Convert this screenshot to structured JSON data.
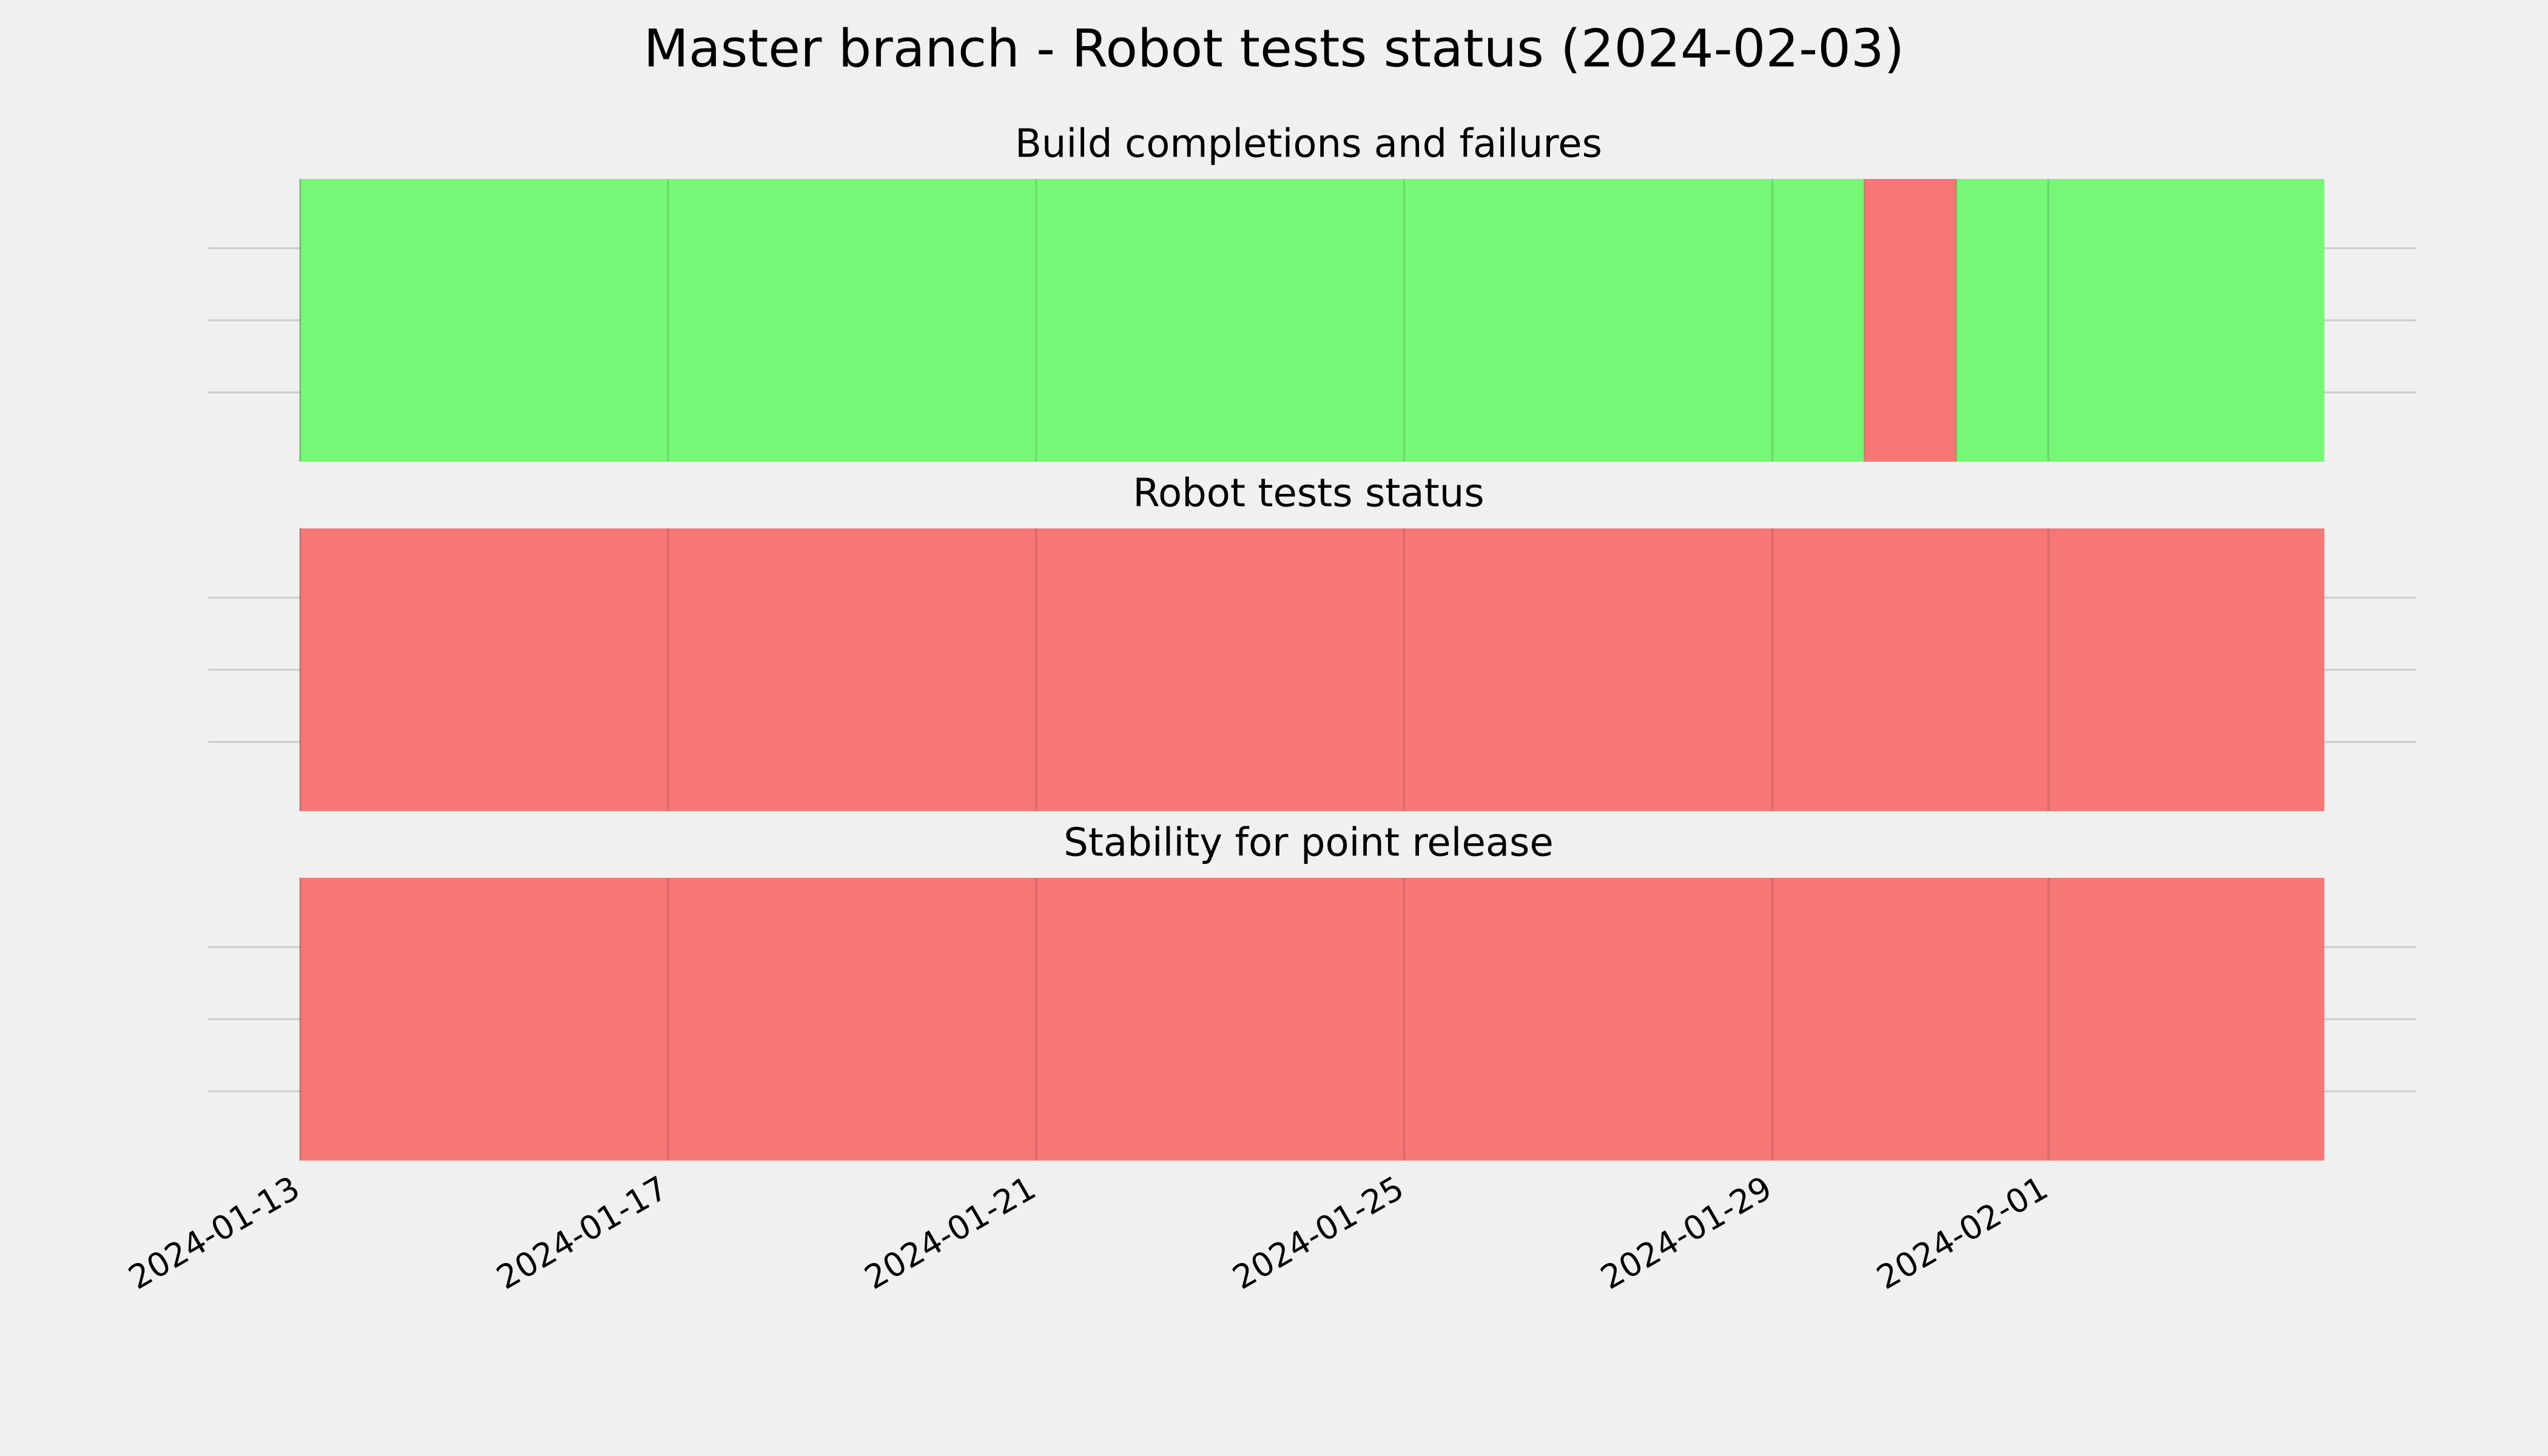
{
  "title": "Master branch - Robot tests status (2024-02-03)",
  "chart_data": [
    {
      "type": "timeline",
      "title": "Build completions and failures",
      "spans": [
        {
          "start": "2024-01-13",
          "end": "2024-01-30",
          "color": "#76f776"
        },
        {
          "start": "2024-01-30",
          "end": "2024-01-31",
          "color": "#f77676"
        },
        {
          "start": "2024-01-31",
          "end": "2024-02-04",
          "color": "#76f776"
        }
      ],
      "xlim": [
        "2024-01-12",
        "2024-02-05"
      ],
      "xticks": [
        "2024-01-13",
        "2024-01-17",
        "2024-01-21",
        "2024-01-25",
        "2024-01-29",
        "2024-02-01"
      ],
      "grid": true,
      "show_xtick_labels": false
    },
    {
      "type": "timeline",
      "title": "Robot tests status",
      "spans": [
        {
          "start": "2024-01-13",
          "end": "2024-02-04",
          "color": "#f77676"
        }
      ],
      "xlim": [
        "2024-01-12",
        "2024-02-05"
      ],
      "xticks": [
        "2024-01-13",
        "2024-01-17",
        "2024-01-21",
        "2024-01-25",
        "2024-01-29",
        "2024-02-01"
      ],
      "grid": true,
      "show_xtick_labels": false
    },
    {
      "type": "timeline",
      "title": "Stability for point release",
      "spans": [
        {
          "start": "2024-01-13",
          "end": "2024-02-04",
          "color": "#f77676"
        }
      ],
      "xlim": [
        "2024-01-12",
        "2024-02-05"
      ],
      "xticks": [
        "2024-01-13",
        "2024-01-17",
        "2024-01-21",
        "2024-01-25",
        "2024-01-29",
        "2024-02-01"
      ],
      "grid": true,
      "show_xtick_labels": true
    }
  ]
}
